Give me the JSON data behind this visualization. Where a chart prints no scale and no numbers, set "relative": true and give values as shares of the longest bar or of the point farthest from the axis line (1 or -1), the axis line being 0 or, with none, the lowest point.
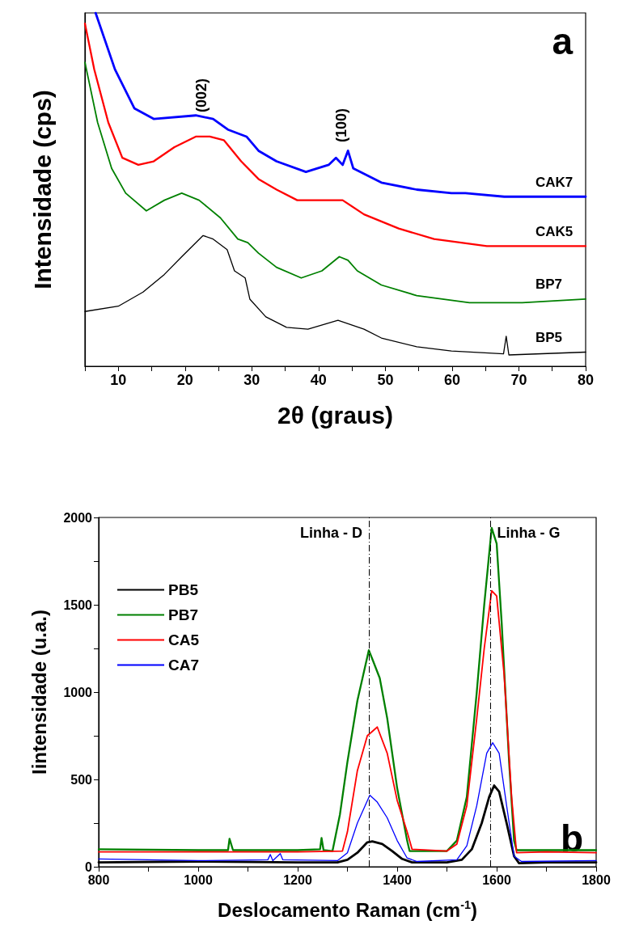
{
  "chart_data": [
    {
      "type": "line",
      "relative": true,
      "xlabel": "2θ (graus)",
      "ylabel": "Intensidade (cps)",
      "xlim": [
        5,
        80
      ],
      "xticks": [
        10,
        20,
        30,
        40,
        50,
        60,
        70,
        80
      ],
      "grid": false,
      "legend": false,
      "marker": "none",
      "line_style": "solid",
      "annotations": [
        "a",
        "(002)",
        "(100)"
      ],
      "series": [
        {
          "name": "CAK7",
          "color": "#0000ff",
          "x": [
            6.6,
            9.5,
            12.4,
            15.3,
            21.6,
            24.2,
            26.4,
            29.2,
            31,
            33.7,
            38.1,
            41.5,
            42.6,
            43.6,
            44.4,
            45.2,
            49.4,
            54.7,
            59.9,
            62,
            67.8,
            80
          ],
          "values": [
            1.0,
            0.84,
            0.73,
            0.7,
            0.71,
            0.7,
            0.67,
            0.65,
            0.61,
            0.58,
            0.55,
            0.57,
            0.59,
            0.57,
            0.61,
            0.56,
            0.52,
            0.5,
            0.49,
            0.49,
            0.48,
            0.48
          ]
        },
        {
          "name": "CAK5",
          "color": "#ff0000",
          "x": [
            5,
            6.4,
            8.5,
            10.6,
            13,
            15.3,
            18.4,
            21.6,
            23.7,
            25.8,
            28.4,
            31,
            33.7,
            36.8,
            40.5,
            43.6,
            46.8,
            52,
            57.3,
            65.2,
            80
          ],
          "values": [
            0.97,
            0.84,
            0.69,
            0.59,
            0.57,
            0.58,
            0.62,
            0.65,
            0.65,
            0.64,
            0.58,
            0.53,
            0.5,
            0.47,
            0.47,
            0.47,
            0.43,
            0.39,
            0.36,
            0.34,
            0.34
          ]
        },
        {
          "name": "BP7",
          "color": "#008000",
          "x": [
            5,
            6.9,
            9,
            11.1,
            14.2,
            16.9,
            19.5,
            22.1,
            25.3,
            27.9,
            29.4,
            31,
            33.7,
            37.4,
            40.5,
            43.1,
            44.4,
            45.8,
            49.4,
            54.7,
            62.6,
            70.5,
            80
          ],
          "values": [
            0.86,
            0.69,
            0.56,
            0.49,
            0.44,
            0.47,
            0.49,
            0.47,
            0.42,
            0.36,
            0.35,
            0.32,
            0.28,
            0.25,
            0.27,
            0.31,
            0.3,
            0.27,
            0.23,
            0.2,
            0.18,
            0.18,
            0.19
          ]
        },
        {
          "name": "BP5",
          "color": "#000000",
          "x": [
            5,
            10,
            13.7,
            16.9,
            19.5,
            22.7,
            24.2,
            26.3,
            27.4,
            29,
            29.7,
            32.1,
            35.2,
            38.4,
            42.9,
            46.8,
            49.4,
            54.7,
            59.9,
            67.7,
            68.1,
            68.5,
            80
          ],
          "values": [
            0.155,
            0.17,
            0.21,
            0.26,
            0.31,
            0.37,
            0.36,
            0.33,
            0.27,
            0.25,
            0.19,
            0.14,
            0.11,
            0.105,
            0.13,
            0.105,
            0.08,
            0.055,
            0.043,
            0.035,
            0.085,
            0.032,
            0.04
          ]
        }
      ]
    },
    {
      "type": "line",
      "xlabel": "Deslocamento Raman (cm$^{-1}$)",
      "ylabel": "Iintensidade (u.a.)",
      "xlim": [
        800,
        1800
      ],
      "xticks": [
        800,
        1000,
        1200,
        1400,
        1600,
        1800
      ],
      "ylim": [
        0,
        2000
      ],
      "yticks": [
        0,
        500,
        1000,
        1500,
        2000
      ],
      "grid": false,
      "legend": "top left",
      "marker": "none",
      "line_style": "solid",
      "annotations": [
        "b"
      ],
      "ref_lines": [
        {
          "axis": "x",
          "value": 1343,
          "label": "Linha - D",
          "line_style": "dashed",
          "color": "#000000"
        },
        {
          "axis": "x",
          "value": 1588,
          "label": "Linha - G",
          "line_style": "dashed",
          "color": "#000000"
        }
      ],
      "series": [
        {
          "name": "PB5",
          "color": "#000000",
          "x": [
            800,
            1000,
            1200,
            1280,
            1300,
            1320,
            1340,
            1350,
            1370,
            1390,
            1410,
            1430,
            1500,
            1530,
            1550,
            1570,
            1585,
            1595,
            1605,
            1620,
            1635,
            1645,
            1700,
            1800
          ],
          "values": [
            25,
            30,
            25,
            25,
            40,
            80,
            140,
            145,
            130,
            90,
            45,
            25,
            25,
            40,
            100,
            250,
            400,
            465,
            430,
            250,
            60,
            20,
            25,
            25
          ]
        },
        {
          "name": "PB7",
          "color": "#008000",
          "x": [
            800,
            1000,
            1060,
            1063,
            1070,
            1200,
            1245,
            1248,
            1252,
            1270,
            1285,
            1300,
            1320,
            1343,
            1350,
            1365,
            1380,
            1400,
            1420,
            1425,
            1500,
            1520,
            1540,
            1560,
            1575,
            1590,
            1600,
            1610,
            1625,
            1635,
            1640,
            1700,
            1800
          ],
          "values": [
            100,
            95,
            95,
            160,
            95,
            95,
            100,
            165,
            95,
            90,
            300,
            600,
            950,
            1240,
            1190,
            1080,
            850,
            450,
            150,
            90,
            90,
            150,
            400,
            1000,
            1500,
            1940,
            1850,
            1400,
            600,
            150,
            95,
            95,
            95
          ]
        },
        {
          "name": "CA5",
          "color": "#ff0000",
          "x": [
            800,
            1000,
            1200,
            1290,
            1300,
            1320,
            1340,
            1360,
            1380,
            1400,
            1420,
            1430,
            1500,
            1520,
            1540,
            1560,
            1575,
            1590,
            1600,
            1615,
            1630,
            1640,
            1700,
            1800
          ],
          "values": [
            85,
            85,
            85,
            90,
            200,
            550,
            750,
            800,
            650,
            380,
            200,
            100,
            90,
            130,
            350,
            850,
            1250,
            1580,
            1550,
            1100,
            400,
            80,
            85,
            80
          ]
        },
        {
          "name": "CA7",
          "color": "#0000ff",
          "x": [
            800,
            1000,
            1140,
            1145,
            1150,
            1165,
            1170,
            1280,
            1300,
            1320,
            1345,
            1360,
            1380,
            1400,
            1420,
            1440,
            1520,
            1540,
            1560,
            1580,
            1592,
            1605,
            1620,
            1635,
            1650,
            1800
          ],
          "values": [
            45,
            35,
            40,
            70,
            35,
            75,
            40,
            35,
            80,
            250,
            410,
            370,
            280,
            150,
            50,
            30,
            40,
            120,
            350,
            650,
            710,
            650,
            350,
            60,
            30,
            35
          ]
        }
      ]
    }
  ]
}
